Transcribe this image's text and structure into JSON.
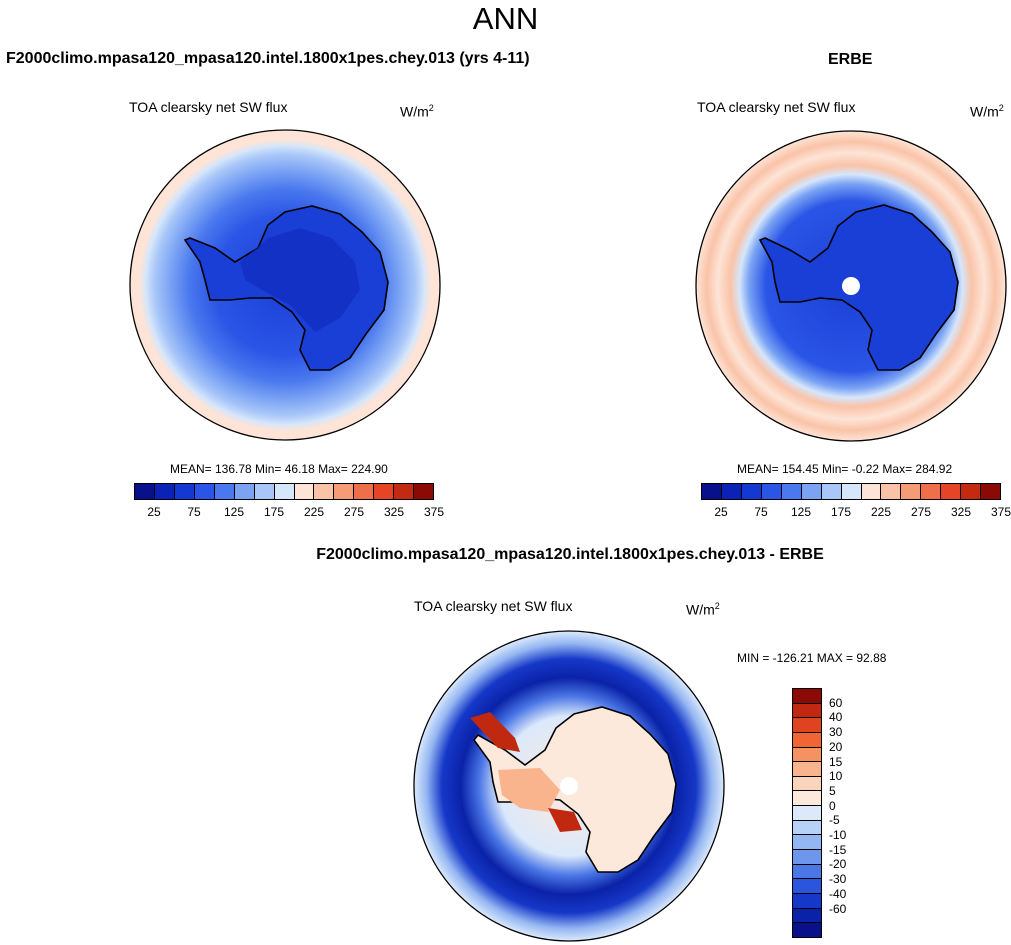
{
  "main_title": "ANN",
  "variable": "TOA clearsky net SW flux",
  "units_base": "W/m",
  "units_exp": "2",
  "left_panel": {
    "case_title": "F2000climo.mpasa120_mpasa120.intel.1800x1pes.chey.013 (yrs 4-11)",
    "stats": "MEAN= 136.78  Min=  46.18  Max= 224.90"
  },
  "right_panel": {
    "case_title": "ERBE",
    "stats": "MEAN= 154.45  Min=  -0.22  Max= 284.92"
  },
  "diff_panel": {
    "case_title": "F2000climo.mpasa120_mpasa120.intel.1800x1pes.chey.013 - ERBE",
    "stats": "MIN = -126.21 MAX =  92.88"
  },
  "colorbar": {
    "colors": [
      "#08108c",
      "#0a22b5",
      "#1638d2",
      "#2a55e6",
      "#4a78ee",
      "#7aa3f4",
      "#a8c6f8",
      "#d6e6fb",
      "#fde4d6",
      "#fac3a8",
      "#f59b76",
      "#ef6f4a",
      "#e54526",
      "#c42a12",
      "#8c0a05"
    ],
    "labels": [
      "25",
      "75",
      "125",
      "175",
      "225",
      "275",
      "325",
      "375"
    ]
  },
  "diff_colorbar": {
    "colors": [
      "#8c0a05",
      "#c02810",
      "#e0431f",
      "#ef6634",
      "#f5925f",
      "#f9b48e",
      "#fbd4bb",
      "#fde9dc",
      "#dbe9fb",
      "#b8d1f7",
      "#94b6f2",
      "#6e97ec",
      "#4a76e6",
      "#2b55dc",
      "#1638c8",
      "#0a22a8",
      "#08108a"
    ],
    "labels": [
      "60",
      "40",
      "30",
      "20",
      "15",
      "10",
      "5",
      "0",
      "-5",
      "-10",
      "-15",
      "-20",
      "-30",
      "-40",
      "-60"
    ]
  }
}
